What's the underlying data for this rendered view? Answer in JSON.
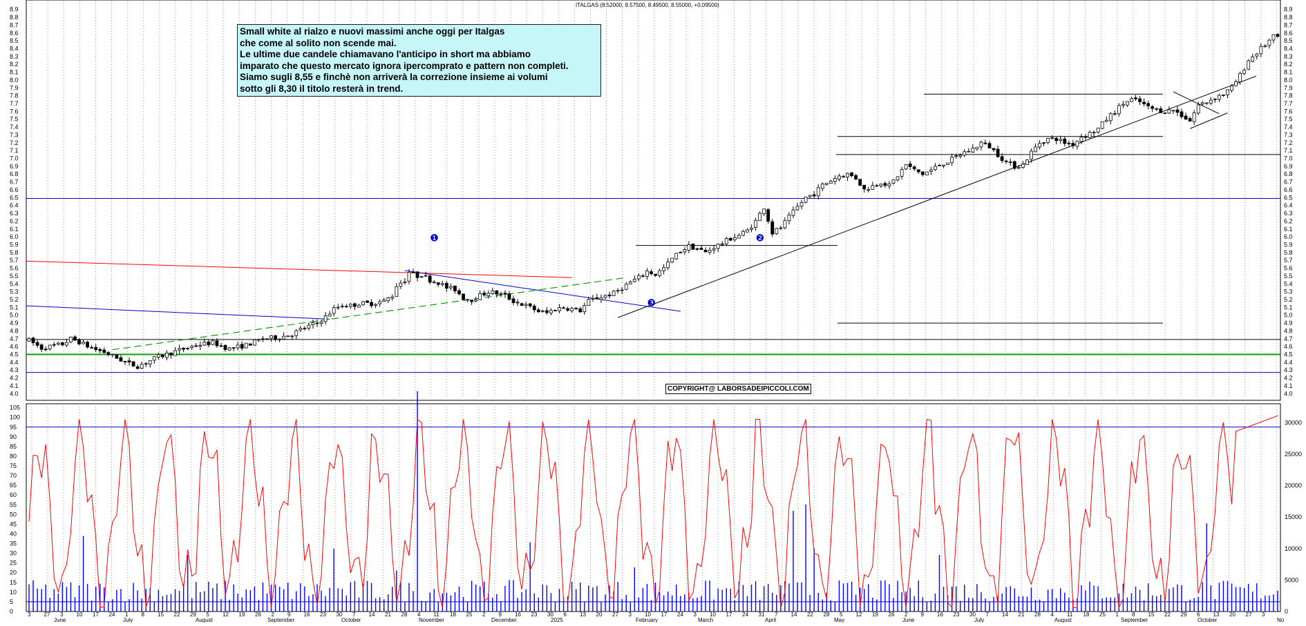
{
  "header": {
    "ohlc_readout": "ITALGAS (8.52000, 8.57500, 8.49500, 8.55000, +0.09500)"
  },
  "note": {
    "lines": [
      "Small white al rialzo e nuovi massimi anche oggi per Italgas",
      "che come al solito non scende mai.",
      "Le ultime due candele chiamavano l'anticipo in short ma abbiamo",
      "imparato che questo mercato ignora ipercomprato e pattern non completi.",
      "Siamo sugli 8,55 e finchè non arriverà la correzione insieme ai volumi",
      "sotto gli 8,30 il titolo resterà in trend."
    ]
  },
  "copyright": "COPYRIGHT@ LABORSADEIPICCOLI.COM",
  "markers": [
    {
      "label": "❶",
      "x": 97,
      "y": 5.99
    },
    {
      "label": "❷",
      "x": 175,
      "y": 5.99
    },
    {
      "label": "❸",
      "x": 149,
      "y": 5.16
    }
  ],
  "colors": {
    "candle": "#000000",
    "oscillator": "#ff0000",
    "volume": "#0000ff",
    "upper_level": "#0000cc",
    "support_green": "#00a000",
    "red_line": "#ff0000",
    "green_dash": "#00a000",
    "blue_trend": "#0000cc"
  },
  "chart_data": [
    {
      "type": "candlestick",
      "title": "ITALGAS",
      "ylim": [
        3.95,
        8.95
      ],
      "y_ticks": [
        "4.0",
        "4.1",
        "4.2",
        "4.3",
        "4.4",
        "4.5",
        "4.6",
        "4.7",
        "4.8",
        "4.9",
        "5.0",
        "5.1",
        "5.2",
        "5.3",
        "5.4",
        "5.5",
        "5.6",
        "5.7",
        "5.8",
        "5.9",
        "6.0",
        "6.1",
        "6.2",
        "6.3",
        "6.4",
        "6.5",
        "6.6",
        "6.7",
        "6.8",
        "6.9",
        "7.0",
        "7.1",
        "7.2",
        "7.3",
        "7.4",
        "7.5",
        "7.6",
        "7.7",
        "7.8",
        "7.9",
        "8.0",
        "8.1",
        "8.2",
        "8.3",
        "8.4",
        "8.5",
        "8.6",
        "8.7",
        "8.8",
        "8.9"
      ],
      "price_anchors": [
        [
          0,
          4.68
        ],
        [
          3,
          4.58
        ],
        [
          8,
          4.63
        ],
        [
          10,
          4.7
        ],
        [
          12,
          4.66
        ],
        [
          15,
          4.58
        ],
        [
          18,
          4.53
        ],
        [
          20,
          4.48
        ],
        [
          24,
          4.38
        ],
        [
          26,
          4.35
        ],
        [
          28,
          4.4
        ],
        [
          31,
          4.47
        ],
        [
          34,
          4.52
        ],
        [
          37,
          4.57
        ],
        [
          40,
          4.62
        ],
        [
          44,
          4.65
        ],
        [
          48,
          4.57
        ],
        [
          52,
          4.62
        ],
        [
          56,
          4.7
        ],
        [
          60,
          4.72
        ],
        [
          63,
          4.76
        ],
        [
          66,
          4.84
        ],
        [
          69,
          4.9
        ],
        [
          71,
          4.98
        ],
        [
          73,
          5.08
        ],
        [
          75,
          5.13
        ],
        [
          77,
          5.12
        ],
        [
          79,
          5.15
        ],
        [
          82,
          5.15
        ],
        [
          85,
          5.18
        ],
        [
          87,
          5.25
        ],
        [
          88,
          5.38
        ],
        [
          90,
          5.45
        ],
        [
          91,
          5.55
        ],
        [
          93,
          5.5
        ],
        [
          94,
          5.52
        ],
        [
          96,
          5.45
        ],
        [
          98,
          5.42
        ],
        [
          100,
          5.35
        ],
        [
          102,
          5.33
        ],
        [
          104,
          5.22
        ],
        [
          106,
          5.2
        ],
        [
          108,
          5.25
        ],
        [
          110,
          5.3
        ],
        [
          112,
          5.28
        ],
        [
          114,
          5.25
        ],
        [
          116,
          5.18
        ],
        [
          118,
          5.14
        ],
        [
          120,
          5.1
        ],
        [
          122,
          5.05
        ],
        [
          124,
          5.03
        ],
        [
          126,
          5.08
        ],
        [
          128,
          5.1
        ],
        [
          130,
          5.08
        ],
        [
          132,
          5.06
        ],
        [
          134,
          5.18
        ],
        [
          136,
          5.22
        ],
        [
          138,
          5.25
        ],
        [
          140,
          5.28
        ],
        [
          142,
          5.35
        ],
        [
          144,
          5.42
        ],
        [
          146,
          5.48
        ],
        [
          148,
          5.56
        ],
        [
          150,
          5.52
        ],
        [
          152,
          5.6
        ],
        [
          154,
          5.72
        ],
        [
          156,
          5.82
        ],
        [
          158,
          5.88
        ],
        [
          160,
          5.85
        ],
        [
          162,
          5.8
        ],
        [
          164,
          5.87
        ],
        [
          166,
          5.92
        ],
        [
          168,
          5.98
        ],
        [
          170,
          6.02
        ],
        [
          172,
          6.08
        ],
        [
          174,
          6.2
        ],
        [
          176,
          6.38
        ],
        [
          178,
          6.05
        ],
        [
          180,
          6.12
        ],
        [
          182,
          6.25
        ],
        [
          184,
          6.38
        ],
        [
          186,
          6.5
        ],
        [
          188,
          6.55
        ],
        [
          190,
          6.66
        ],
        [
          192,
          6.72
        ],
        [
          194,
          6.78
        ],
        [
          196,
          6.8
        ],
        [
          198,
          6.75
        ],
        [
          200,
          6.6
        ],
        [
          202,
          6.65
        ],
        [
          204,
          6.7
        ],
        [
          206,
          6.65
        ],
        [
          208,
          6.78
        ],
        [
          210,
          6.92
        ],
        [
          212,
          6.85
        ],
        [
          214,
          6.8
        ],
        [
          216,
          6.85
        ],
        [
          218,
          6.92
        ],
        [
          220,
          6.96
        ],
        [
          222,
          7.02
        ],
        [
          224,
          7.08
        ],
        [
          226,
          7.12
        ],
        [
          228,
          7.2
        ],
        [
          230,
          7.15
        ],
        [
          232,
          7.05
        ],
        [
          234,
          6.95
        ],
        [
          236,
          6.9
        ],
        [
          238,
          6.92
        ],
        [
          240,
          7.08
        ],
        [
          242,
          7.2
        ],
        [
          244,
          7.25
        ],
        [
          246,
          7.25
        ],
        [
          248,
          7.2
        ],
        [
          250,
          7.18
        ],
        [
          252,
          7.28
        ],
        [
          254,
          7.32
        ],
        [
          256,
          7.38
        ],
        [
          258,
          7.5
        ],
        [
          260,
          7.6
        ],
        [
          262,
          7.7
        ],
        [
          264,
          7.75
        ],
        [
          266,
          7.72
        ],
        [
          268,
          7.65
        ],
        [
          270,
          7.62
        ],
        [
          272,
          7.6
        ],
        [
          274,
          7.62
        ],
        [
          276,
          7.55
        ],
        [
          278,
          7.48
        ],
        [
          280,
          7.68
        ],
        [
          282,
          7.72
        ],
        [
          284,
          7.78
        ],
        [
          286,
          7.82
        ],
        [
          288,
          7.9
        ],
        [
          290,
          8.06
        ],
        [
          292,
          8.25
        ],
        [
          294,
          8.35
        ],
        [
          296,
          8.45
        ],
        [
          298,
          8.55
        ]
      ],
      "levels": [
        4.27,
        4.5,
        4.69,
        6.49
      ],
      "resistance_segments": [
        [
          4.9,
          "May",
          "September"
        ],
        [
          5.89,
          "February",
          "May"
        ],
        [
          7.05,
          "April",
          "end"
        ],
        [
          7.28,
          "May",
          "September"
        ],
        [
          7.82,
          "June",
          "September"
        ]
      ],
      "x_tick_labels": [
        "3",
        "27",
        "3",
        "10",
        "17",
        "24",
        "1",
        "8",
        "15",
        "22",
        "29",
        "5",
        "12",
        "19",
        "26",
        "2",
        "9",
        "16",
        "23",
        "30",
        "7",
        "14",
        "21",
        "28",
        "4",
        "11",
        "18",
        "25",
        "2",
        "9",
        "16",
        "23",
        "30",
        "6",
        "13",
        "20",
        "27",
        "3",
        "10",
        "17",
        "24",
        "3",
        "10",
        "17",
        "24",
        "31",
        "7",
        "14",
        "22",
        "28",
        "5",
        "12",
        "19",
        "26",
        "2",
        "9",
        "16",
        "23",
        "30",
        "7",
        "14",
        "21",
        "28",
        "4",
        "11",
        "18",
        "25",
        "1",
        "8",
        "15",
        "22",
        "29",
        "6",
        "13",
        "20",
        "27",
        "3"
      ],
      "x_month_labels": [
        "June",
        "July",
        "August",
        "September",
        "October",
        "November",
        "December",
        "2025",
        "February",
        "March",
        "April",
        "May",
        "June",
        "July",
        "August",
        "September",
        "October",
        "No"
      ]
    },
    {
      "type": "line",
      "name": "oscillator",
      "ylim": [
        0,
        107
      ],
      "y_ticks": [
        "0",
        "5",
        "10",
        "15",
        "20",
        "25",
        "30",
        "35",
        "40",
        "45",
        "50",
        "55",
        "60",
        "65",
        "70",
        "75",
        "80",
        "85",
        "90",
        "95",
        "100",
        "105"
      ],
      "horizontal_levels": [
        95,
        5
      ]
    },
    {
      "type": "bar",
      "name": "volume",
      "right_axis_ticks": [
        "0",
        "5000",
        "10000",
        "15000",
        "20000",
        "25000",
        "30000"
      ],
      "right_axis_max": 33000
    }
  ]
}
